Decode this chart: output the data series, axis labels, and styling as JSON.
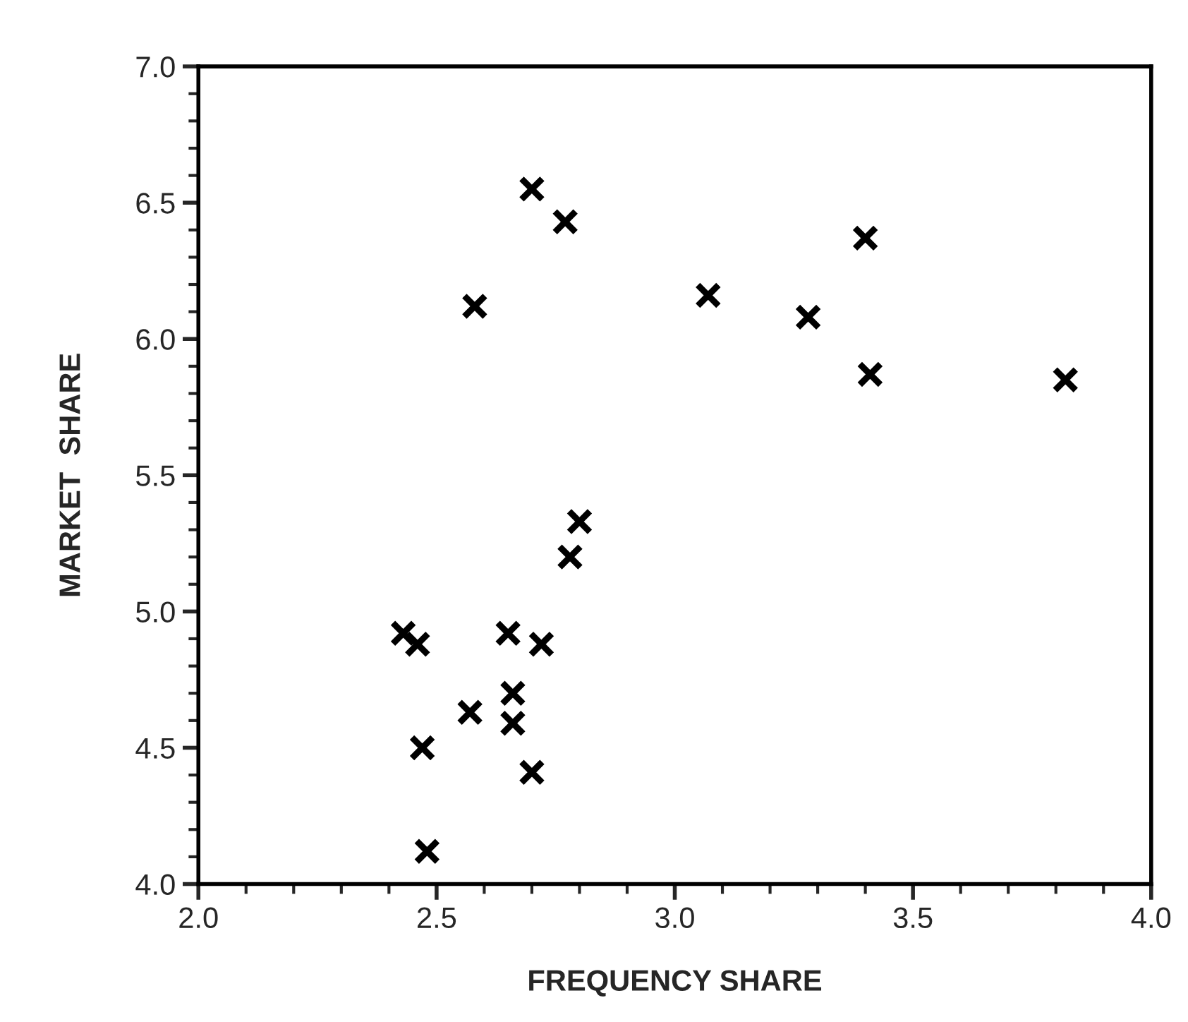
{
  "chart_data": {
    "type": "scatter",
    "xlabel": "FREQUENCY SHARE",
    "ylabel": "MARKET  SHARE",
    "x": [
      2.7,
      2.77,
      3.4,
      2.58,
      3.07,
      3.28,
      3.41,
      3.82,
      2.8,
      2.78,
      2.43,
      2.46,
      2.65,
      2.72,
      2.66,
      2.57,
      2.66,
      2.47,
      2.7,
      2.48
    ],
    "values": [
      6.55,
      6.43,
      6.37,
      6.12,
      6.16,
      6.08,
      5.87,
      5.85,
      5.33,
      5.2,
      4.92,
      4.88,
      4.92,
      4.88,
      4.7,
      4.63,
      4.59,
      4.5,
      4.41,
      4.12
    ],
    "color": "#000000",
    "marker": "cross",
    "xlim": [
      2.0,
      4.0
    ],
    "xticks": [
      {
        "value": 2,
        "label": "2.0"
      },
      2.5,
      {
        "value": 3,
        "label": "3.0"
      },
      3.5,
      {
        "value": 4,
        "label": "4.0"
      }
    ],
    "ylim": [
      4.0,
      7.0
    ],
    "yticks": [
      {
        "value": 4,
        "label": "4.0"
      },
      4.5,
      {
        "value": 5,
        "label": "5.0"
      },
      5.5,
      {
        "value": 6,
        "label": "6.0"
      },
      6.5,
      {
        "value": 7,
        "label": "7.0"
      }
    ],
    "grid": false
  }
}
